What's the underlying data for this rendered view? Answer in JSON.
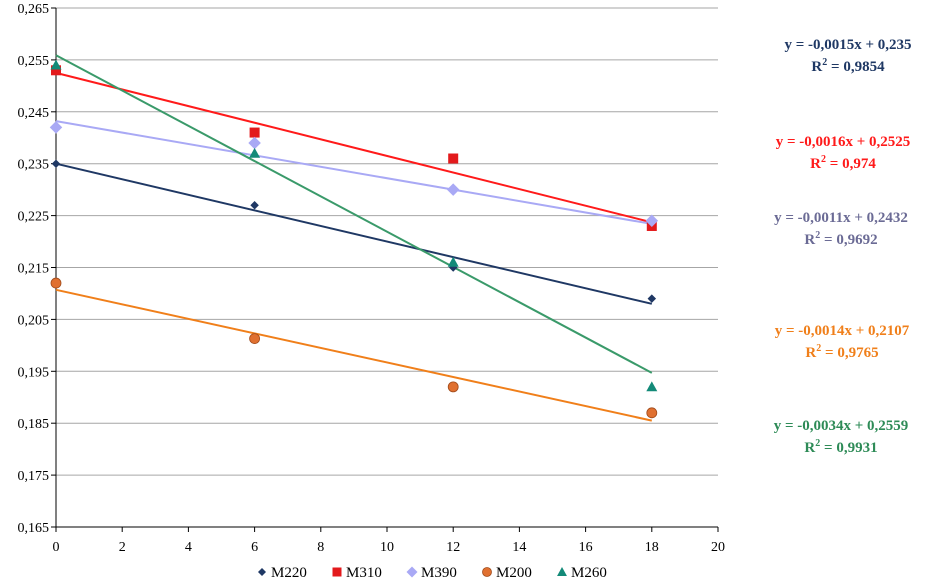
{
  "chart_data": {
    "type": "scatter",
    "title": "",
    "xlabel": "",
    "ylabel": "",
    "xlim": [
      0,
      20
    ],
    "ylim": [
      0.165,
      0.265
    ],
    "x_ticks": [
      "0",
      "2",
      "4",
      "6",
      "8",
      "10",
      "12",
      "14",
      "16",
      "18",
      "20"
    ],
    "y_ticks": [
      "0,165",
      "0,175",
      "0,185",
      "0,195",
      "0,205",
      "0,215",
      "0,225",
      "0,235",
      "0,245",
      "0,255",
      "0,265"
    ],
    "grid": "horizontal",
    "legend_position": "bottom",
    "series": [
      {
        "name": "M220",
        "color": "#1f3864",
        "marker": "diamond",
        "x": [
          0,
          6,
          12,
          18
        ],
        "y": [
          0.235,
          0.227,
          0.215,
          0.209
        ],
        "trend": {
          "slope": -0.0015,
          "intercept": 0.235,
          "x_range": [
            0,
            18
          ]
        },
        "equation": "y = -0,0015x + 0,235",
        "r2": "0,9854"
      },
      {
        "name": "M310",
        "color": "#e31a1c",
        "marker": "square",
        "x": [
          0,
          6,
          12,
          18
        ],
        "y": [
          0.253,
          0.241,
          0.236,
          0.223
        ],
        "trend": {
          "slope": -0.0016,
          "intercept": 0.2525,
          "x_range": [
            0,
            18
          ]
        },
        "equation": "y = -0,0016x + 0,2525",
        "r2": "0,974"
      },
      {
        "name": "M390",
        "color": "#a9a9f5",
        "marker": "diamond",
        "x": [
          0,
          6,
          12,
          18
        ],
        "y": [
          0.242,
          0.239,
          0.23,
          0.224
        ],
        "trend": {
          "slope": -0.0011,
          "intercept": 0.2432,
          "x_range": [
            0,
            18
          ]
        },
        "equation": "y = -0,0011x + 0,2432",
        "r2": "0,9692"
      },
      {
        "name": "M200",
        "color": "#e07030",
        "marker": "circle",
        "x": [
          0,
          6,
          12,
          18
        ],
        "y": [
          0.212,
          0.2013,
          0.192,
          0.187
        ],
        "trend": {
          "slope": -0.0014,
          "intercept": 0.2107,
          "x_range": [
            0,
            18
          ]
        },
        "equation": "y = -0,0014x + 0,2107",
        "r2": "0,9765"
      },
      {
        "name": "M260",
        "color": "#138a78",
        "marker": "triangle",
        "x": [
          0,
          6,
          12,
          18
        ],
        "y": [
          0.254,
          0.237,
          0.216,
          0.192
        ],
        "trend": {
          "slope": -0.0034,
          "intercept": 0.2559,
          "x_range": [
            0,
            18
          ]
        },
        "equation": "y = -0,0034x + 0,2559",
        "r2": "0,9931"
      }
    ]
  },
  "equation_colors": {
    "M220": "#1f3864",
    "M310": "#ff1a1a",
    "M390": "#6b6b95",
    "M200": "#f07f1a",
    "M260": "#2e8b57"
  },
  "trendline_colors": {
    "M220": "#1f3864",
    "M310": "#ff1a1a",
    "M390": "#a9a9f5",
    "M200": "#f07f1a",
    "M260": "#3a9a6a"
  },
  "r2_label": "R",
  "r2_exponent": "2",
  "r2_separator": " = "
}
